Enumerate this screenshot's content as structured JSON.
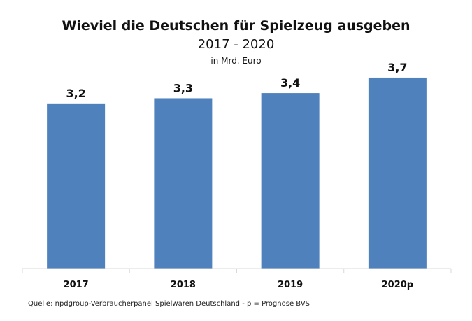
{
  "chart_data": {
    "type": "bar",
    "title": "Wieviel die Deutschen für Spielzeug ausgeben",
    "subtitle": "2017 - 2020",
    "unit_label": "in Mrd. Euro",
    "categories": [
      "2017",
      "2018",
      "2019",
      "2020p"
    ],
    "values": [
      3.2,
      3.3,
      3.4,
      3.7
    ],
    "data_labels": [
      "3,2",
      "3,3",
      "3,4",
      "3,7"
    ],
    "xlabel": "",
    "ylabel": "",
    "ylim": [
      0,
      4.0
    ],
    "grid": false,
    "bar_color": "#4f81bd",
    "source": "Quelle: npdgroup-Verbraucherpanel Spielwaren Deutschland - p = Prognose BVS"
  }
}
